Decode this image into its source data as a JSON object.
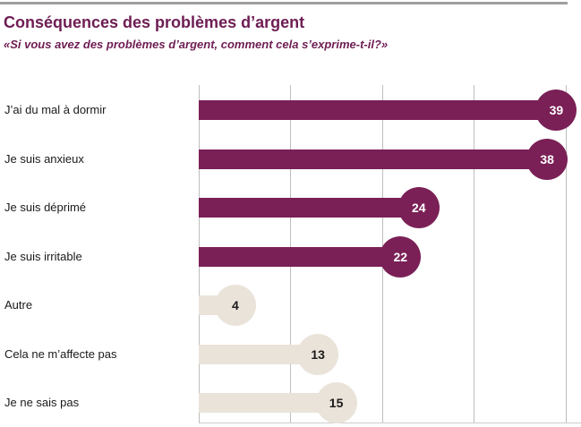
{
  "header": {
    "title": "Conséquences des problèmes d’argent",
    "subtitle": "«Si vous avez des problèmes d’argent, comment cela s’exprime-t-il?»"
  },
  "colors": {
    "title_text": "#6e1d53",
    "bar_dark": "#7a2056",
    "bar_light": "#eae3d9",
    "value_on_dark": "#ffffff",
    "value_on_light": "#1a1a1a",
    "label_text": "#1a1a1a",
    "gridline": "#bdbdbd",
    "baseline": "#cccccc",
    "top_rule": "#9e9e9e"
  },
  "chart_data": {
    "type": "bar",
    "orientation": "horizontal",
    "title": "Conséquences des problèmes d’argent",
    "subtitle": "«Si vous avez des problèmes d’argent, comment cela s’exprime-t-il?»",
    "categories": [
      "J’ai du mal à dormir",
      "Je suis anxieux",
      "Je suis déprimé",
      "Je suis irritable",
      "Autre",
      "Cela ne m’affecte pas",
      "Je ne sais pas"
    ],
    "values": [
      39,
      38,
      24,
      22,
      4,
      13,
      15
    ],
    "bar_styles": [
      "dark",
      "dark",
      "dark",
      "dark",
      "light",
      "light",
      "light"
    ],
    "value_labels_shown": true,
    "value_label_position": "circle at bar end",
    "xlim": [
      0,
      40
    ],
    "gridlines_x": [
      0,
      10,
      20,
      30,
      40
    ],
    "axis_tick_labels_shown": false,
    "grid": "vertical",
    "legend": "none"
  }
}
